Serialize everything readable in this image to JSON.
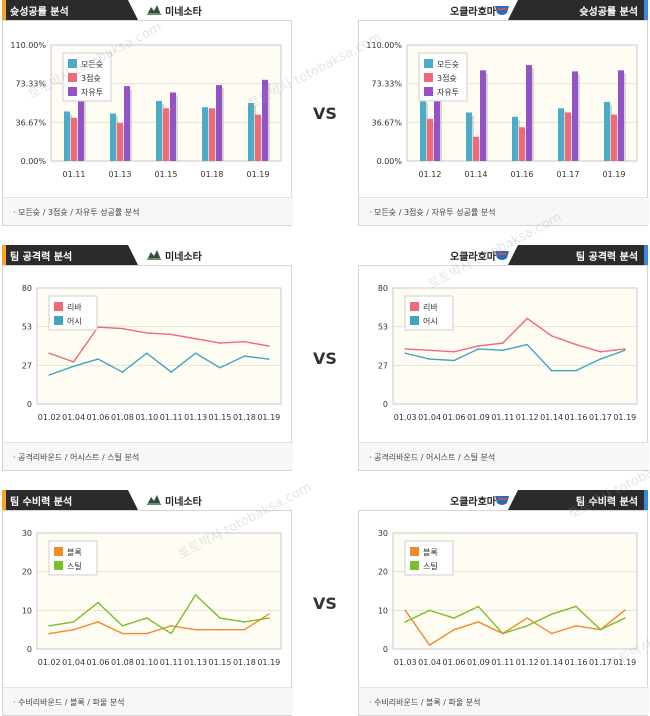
{
  "colors": {
    "bar_all": "#4cacc6",
    "bar_three": "#ee6a78",
    "bar_free": "#9452c7",
    "line_rebound": "#ee6a78",
    "line_assist": "#42a5bd",
    "line_block": "#f08a2c",
    "line_steal": "#79c02b",
    "plot_bg": "#fffdf3",
    "accent_left": "#f6a623",
    "accent_right": "#3a86d8"
  },
  "vs_label": "VS",
  "watermark": "토토박사 totobaksa.com",
  "teams": {
    "left": "미네소타",
    "right": "오클라호마"
  },
  "sections": [
    {
      "id": "shooting",
      "title": "슛성공률 분석",
      "footer": "· 모든슛 / 3점슛 / 자유투 성공률 분석",
      "legend": [
        "모든슛",
        "3점슛",
        "자유투"
      ],
      "y_ticks": [
        "0.00%",
        "36.67%",
        "73.33%",
        "110.00%"
      ]
    },
    {
      "id": "offense",
      "title": "팀 공격력 분석",
      "footer": "· 공격리바운드 / 어시스트 / 스틸 분석",
      "legend": [
        "리바",
        "어시"
      ],
      "y_ticks": [
        "0",
        "27",
        "53",
        "80"
      ]
    },
    {
      "id": "defense",
      "title": "팀 수비력 분석",
      "footer": "· 수비리바운드 / 블록 / 파울 분석",
      "legend": [
        "블록",
        "스틸"
      ],
      "y_ticks": [
        "0",
        "10",
        "20",
        "30"
      ]
    }
  ],
  "chart_data": [
    {
      "id": "shooting-left",
      "type": "bar",
      "ylim": [
        0,
        110
      ],
      "categories": [
        "01.11",
        "01.13",
        "01.15",
        "01.18",
        "01.19"
      ],
      "series": [
        {
          "name": "모든슛",
          "values": [
            47,
            45,
            57,
            51,
            55
          ]
        },
        {
          "name": "3점슛",
          "values": [
            41,
            36,
            50,
            50,
            44
          ]
        },
        {
          "name": "자유투",
          "values": [
            70,
            71,
            65,
            72,
            77
          ]
        }
      ]
    },
    {
      "id": "shooting-right",
      "type": "bar",
      "ylim": [
        0,
        110
      ],
      "categories": [
        "01.12",
        "01.14",
        "01.16",
        "01.17",
        "01.19"
      ],
      "series": [
        {
          "name": "모든슛",
          "values": [
            58,
            46,
            42,
            50,
            56
          ]
        },
        {
          "name": "3점슛",
          "values": [
            40,
            23,
            32,
            46,
            44
          ]
        },
        {
          "name": "자유투",
          "values": [
            84,
            86,
            91,
            85,
            86
          ]
        }
      ]
    },
    {
      "id": "offense-left",
      "type": "line",
      "ylim": [
        0,
        80
      ],
      "categories": [
        "01.02",
        "01.04",
        "01.06",
        "01.08",
        "01.10",
        "01.11",
        "01.13",
        "01.15",
        "01.18",
        "01.19"
      ],
      "series": [
        {
          "name": "리바",
          "values": [
            35,
            29,
            53,
            52,
            49,
            48,
            45,
            42,
            43,
            40
          ]
        },
        {
          "name": "어시",
          "values": [
            20,
            26,
            31,
            22,
            35,
            22,
            35,
            25,
            33,
            31
          ]
        }
      ]
    },
    {
      "id": "offense-right",
      "type": "line",
      "ylim": [
        0,
        80
      ],
      "categories": [
        "01.03",
        "01.04",
        "01.06",
        "01.09",
        "01.11",
        "01.12",
        "01.14",
        "01.16",
        "01.17",
        "01.19"
      ],
      "series": [
        {
          "name": "리바",
          "values": [
            38,
            37,
            36,
            40,
            42,
            59,
            47,
            41,
            36,
            38
          ]
        },
        {
          "name": "어시",
          "values": [
            35,
            31,
            30,
            38,
            37,
            41,
            23,
            23,
            31,
            37
          ]
        }
      ]
    },
    {
      "id": "defense-left",
      "type": "line",
      "ylim": [
        0,
        30
      ],
      "categories": [
        "01.02",
        "01.04",
        "01.06",
        "01.08",
        "01.10",
        "01.11",
        "01.13",
        "01.15",
        "01.18",
        "01.19"
      ],
      "series": [
        {
          "name": "블록",
          "values": [
            4,
            5,
            7,
            4,
            4,
            6,
            5,
            5,
            5,
            9
          ]
        },
        {
          "name": "스틸",
          "values": [
            6,
            7,
            12,
            6,
            8,
            4,
            14,
            8,
            7,
            8
          ]
        }
      ]
    },
    {
      "id": "defense-right",
      "type": "line",
      "ylim": [
        0,
        30
      ],
      "categories": [
        "01.03",
        "01.04",
        "01.06",
        "01.09",
        "01.11",
        "01.12",
        "01.14",
        "01.16",
        "01.17",
        "01.19"
      ],
      "series": [
        {
          "name": "블록",
          "values": [
            10,
            1,
            5,
            7,
            4,
            8,
            4,
            6,
            5,
            10
          ]
        },
        {
          "name": "스틸",
          "values": [
            7,
            10,
            8,
            11,
            4,
            6,
            9,
            11,
            5,
            8
          ]
        }
      ]
    }
  ]
}
